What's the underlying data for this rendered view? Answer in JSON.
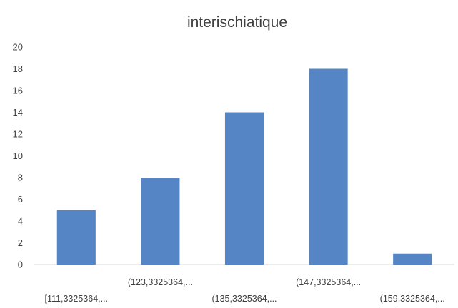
{
  "chart_data": {
    "type": "bar",
    "title": "interischiatique",
    "xlabel": "",
    "ylabel": "",
    "categories": [
      "[111,3325364,...",
      "(123,3325364,...",
      "(135,3325364,...",
      "(147,3325364,...",
      "(159,3325364,..."
    ],
    "values": [
      5,
      8,
      14,
      18,
      1
    ],
    "ylim": [
      0,
      20
    ],
    "yticks": [
      "0",
      "2",
      "4",
      "6",
      "8",
      "10",
      "12",
      "14",
      "16",
      "18",
      "20"
    ],
    "grid": false,
    "legend": "none",
    "colors": {
      "bar": "#5585c5",
      "axis": "#d9d9d9",
      "text": "#404040"
    }
  }
}
